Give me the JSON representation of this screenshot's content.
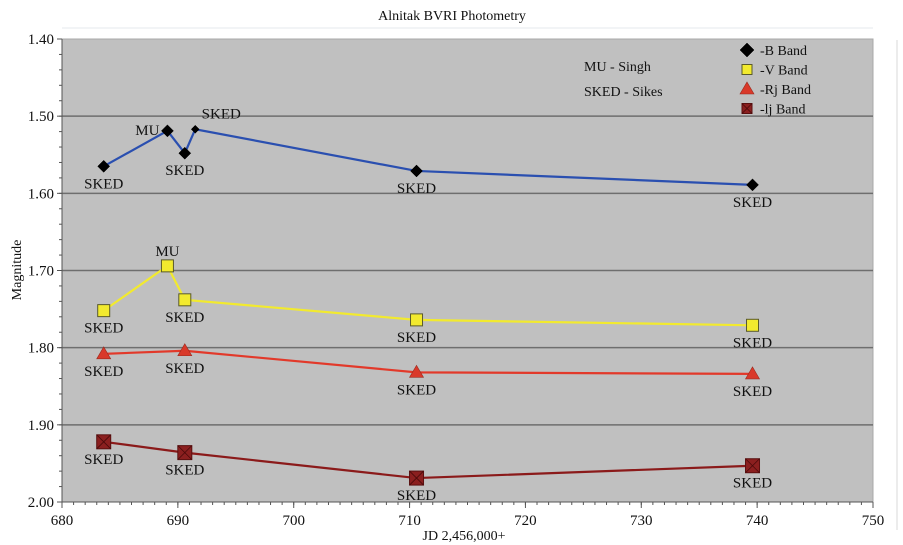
{
  "chart_data": {
    "type": "line",
    "title": "Alnitak BVRI Photometry",
    "xlabel": "JD 2,456,000+",
    "ylabel": "Magnitude",
    "xlim": [
      680,
      750
    ],
    "ylim": [
      1.4,
      2.0
    ],
    "y_inverted": true,
    "x_ticks": [
      "680",
      "690",
      "700",
      "710",
      "720",
      "730",
      "740",
      "750"
    ],
    "x_tick_values": [
      680,
      690,
      700,
      710,
      720,
      730,
      740,
      750
    ],
    "y_ticks": [
      "1.40",
      "1.50",
      "1.60",
      "1.70",
      "1.80",
      "1.90",
      "2.00"
    ],
    "y_tick_values": [
      1.4,
      1.5,
      1.6,
      1.7,
      1.8,
      1.9,
      2.0
    ],
    "grid": true,
    "legend_position": "top-right",
    "notes": [
      "MU - Singh",
      "SKED - Sikes"
    ],
    "series": [
      {
        "name": "-B Band",
        "color": "#2a4fb0",
        "marker": "diamond",
        "marker_color": "#000000",
        "x": [
          683.6,
          689.1,
          690.6,
          691.5,
          710.6,
          739.6
        ],
        "y": [
          1.565,
          1.519,
          1.548,
          1.517,
          1.571,
          1.589
        ],
        "labels": [
          "SKED",
          "MU",
          "SKED",
          "SKED",
          "SKED",
          "SKED"
        ],
        "label_pos": [
          "below",
          "left",
          "below",
          "above",
          "below",
          "below"
        ]
      },
      {
        "name": "-V Band",
        "color": "#f2ea2e",
        "marker": "square",
        "marker_color": "#f2ea2e",
        "x": [
          683.6,
          689.1,
          690.6,
          710.6,
          739.6
        ],
        "y": [
          1.752,
          1.694,
          1.738,
          1.764,
          1.771
        ],
        "labels": [
          "SKED",
          "MU",
          "SKED",
          "SKED",
          "SKED"
        ],
        "label_pos": [
          "below",
          "above",
          "below",
          "below",
          "below"
        ]
      },
      {
        "name": "-Rj Band",
        "color": "#e2392a",
        "marker": "triangle",
        "marker_color": "#d9392a",
        "x": [
          683.6,
          690.6,
          710.6,
          739.6
        ],
        "y": [
          1.808,
          1.804,
          1.832,
          1.834
        ],
        "labels": [
          "SKED",
          "SKED",
          "SKED",
          "SKED"
        ],
        "label_pos": [
          "below",
          "below",
          "below",
          "below"
        ]
      },
      {
        "name": "-lj Band",
        "color": "#8b1a1a",
        "marker": "square-x",
        "marker_color": "#8b1f1f",
        "x": [
          683.6,
          690.6,
          710.6,
          739.6
        ],
        "y": [
          1.922,
          1.936,
          1.969,
          1.953
        ],
        "labels": [
          "SKED",
          "SKED",
          "SKED",
          "SKED"
        ],
        "label_pos": [
          "below",
          "below",
          "below",
          "below"
        ]
      }
    ]
  },
  "colors": {
    "plot_background": "#c0c0c0",
    "gridline": "#6e6e6e",
    "axis": "#555555"
  }
}
